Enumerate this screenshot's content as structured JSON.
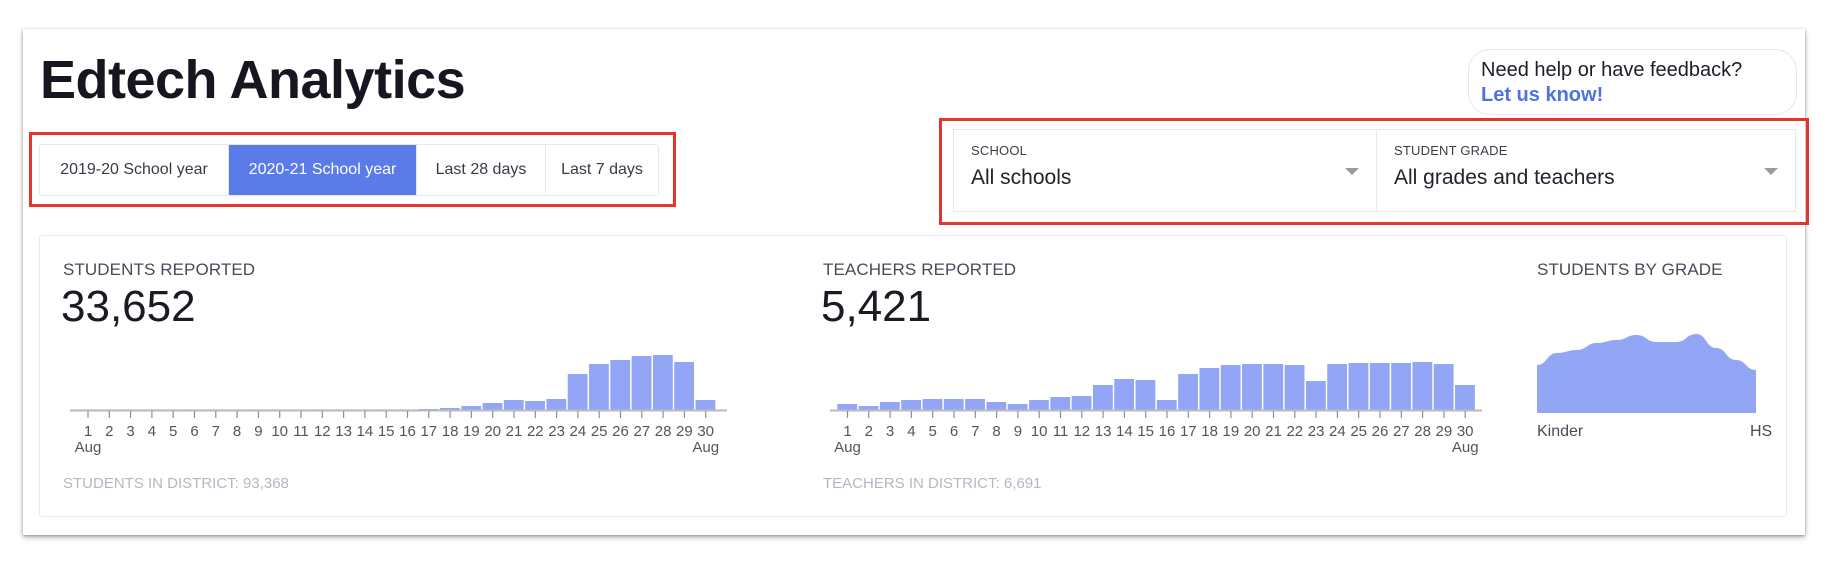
{
  "header": {
    "title": "Edtech Analytics"
  },
  "date_range": {
    "options": [
      {
        "label": "2019-20 School year",
        "active": false
      },
      {
        "label": "2020-21 School year",
        "active": true
      },
      {
        "label": "Last 28 days",
        "active": false
      },
      {
        "label": "Last 7 days",
        "active": false
      }
    ],
    "active_color": "#5b7be8"
  },
  "help": {
    "text": "Need help or have feedback?",
    "link_label": "Let us know!"
  },
  "filters": {
    "school": {
      "label": "SCHOOL",
      "value": "All schools"
    },
    "grade": {
      "label": "STUDENT GRADE",
      "value": "All grades and teachers"
    }
  },
  "stats": {
    "students": {
      "label": "STUDENTS REPORTED",
      "value": "33,652",
      "footer": "STUDENTS IN DISTRICT: 93,368"
    },
    "teachers": {
      "label": "TEACHERS REPORTED",
      "value": "5,421",
      "footer": "TEACHERS IN DISTRICT: 6,691"
    },
    "by_grade": {
      "label": "STUDENTS BY GRADE",
      "start_label": "Kinder",
      "end_label": "HS"
    }
  },
  "colors": {
    "bar": "#92a6f5",
    "highlight": "#e2352b",
    "link": "#4f72e3"
  },
  "chart_data": [
    {
      "type": "bar",
      "title": "STUDENTS REPORTED",
      "categories": [
        "1",
        "2",
        "3",
        "4",
        "5",
        "6",
        "7",
        "8",
        "9",
        "10",
        "11",
        "12",
        "13",
        "14",
        "15",
        "16",
        "17",
        "18",
        "19",
        "20",
        "21",
        "22",
        "23",
        "24",
        "25",
        "26",
        "27",
        "28",
        "29",
        "30"
      ],
      "x_start_label": "Aug",
      "x_end_label": "Aug",
      "values": [
        0.3,
        0.3,
        0.3,
        0.3,
        0.3,
        0.3,
        0.3,
        0.3,
        0.3,
        0.3,
        0.3,
        0.3,
        0.3,
        0.3,
        0.3,
        0.4,
        1,
        2,
        4,
        7,
        10,
        9,
        11,
        36,
        46,
        50,
        54,
        55,
        48,
        10
      ],
      "ylabel": "",
      "xlabel": "",
      "ylim": [
        0,
        60
      ],
      "grid": false
    },
    {
      "type": "bar",
      "title": "TEACHERS REPORTED",
      "categories": [
        "1",
        "2",
        "3",
        "4",
        "5",
        "6",
        "7",
        "8",
        "9",
        "10",
        "11",
        "12",
        "13",
        "14",
        "15",
        "16",
        "17",
        "18",
        "19",
        "20",
        "21",
        "22",
        "23",
        "24",
        "25",
        "26",
        "27",
        "28",
        "29",
        "30"
      ],
      "x_start_label": "Aug",
      "x_end_label": "Aug",
      "values": [
        6,
        4,
        8,
        10,
        11,
        11,
        11,
        8,
        6,
        10,
        13,
        14,
        25,
        31,
        30,
        10,
        36,
        42,
        45,
        46,
        46,
        45,
        29,
        46,
        47,
        47,
        47,
        48,
        46,
        25
      ],
      "ylabel": "",
      "xlabel": "",
      "ylim": [
        0,
        60
      ],
      "grid": false
    },
    {
      "type": "area",
      "title": "STUDENTS BY GRADE",
      "x": [
        "Kinder",
        "",
        "",
        "",
        "",
        "",
        "",
        "",
        "",
        "",
        "",
        "HS"
      ],
      "values": [
        48,
        60,
        63,
        70,
        73,
        78,
        71,
        71,
        79,
        65,
        53,
        43
      ],
      "xlabel_start": "Kinder",
      "xlabel_end": "HS",
      "ylim": [
        0,
        90
      ],
      "grid": false
    }
  ]
}
